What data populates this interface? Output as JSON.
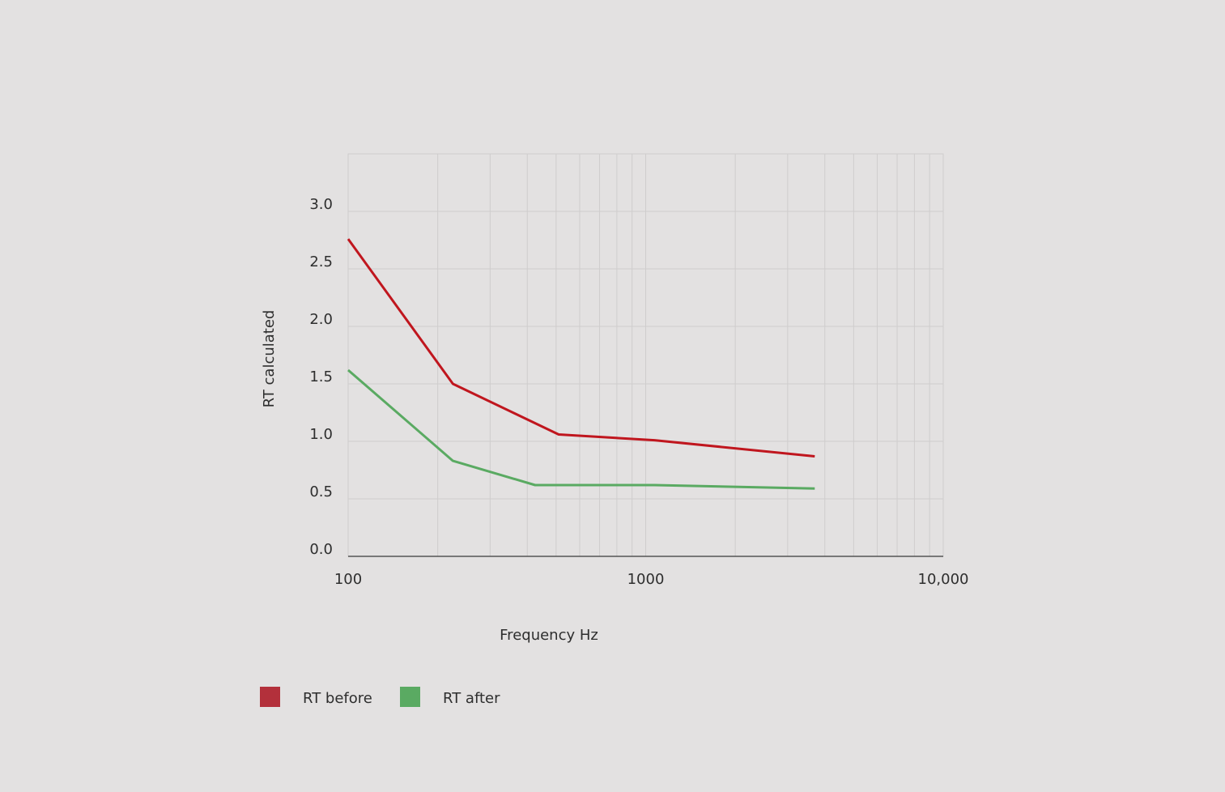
{
  "chart_data": {
    "type": "line",
    "xscale": "log",
    "xlim": [
      100,
      10000
    ],
    "ylim": [
      0,
      3.5
    ],
    "xlabel": "Frequency Hz",
    "ylabel": "RT calculated",
    "xticks": [
      100,
      1000,
      10000
    ],
    "xtick_labels": [
      "100",
      "1000",
      "10,000"
    ],
    "yticks": [
      0,
      0.5,
      1,
      1.5,
      2,
      2.5,
      3
    ],
    "ytick_labels": [
      "0.0",
      "0.5",
      "1.0",
      "1.5",
      "2.0",
      "2.5",
      "3.0"
    ],
    "grid": true,
    "legend": "bottom-left",
    "series": [
      {
        "name": "RT before",
        "color": "#c0161e",
        "legend_color": "#b3303b",
        "x": [
          100,
          225,
          510,
          1070,
          3700
        ],
        "y": [
          2.76,
          1.5,
          1.06,
          1.01,
          0.87
        ]
      },
      {
        "name": "RT after",
        "color": "#5aaa62",
        "legend_color": "#5aaa62",
        "x": [
          100,
          225,
          425,
          1070,
          3700
        ],
        "y": [
          1.62,
          0.83,
          0.62,
          0.62,
          0.59
        ]
      }
    ]
  }
}
